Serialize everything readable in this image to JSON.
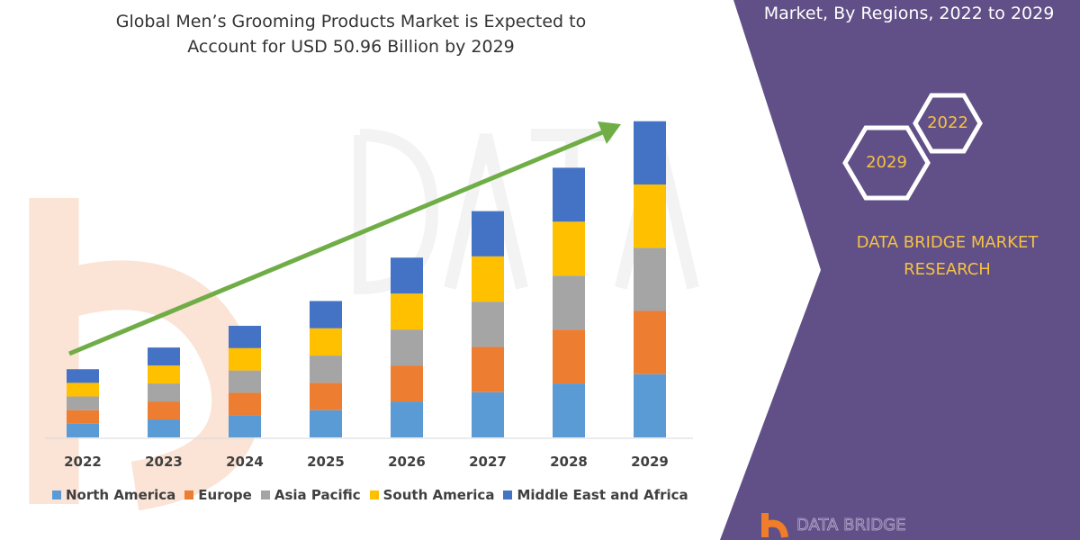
{
  "header": {
    "title_line1": "Global Men’s Grooming Products Market is Expected to",
    "title_line2": "Account for USD 50.96 Billion by 2029"
  },
  "panel": {
    "title": "Market, By Regions, 2022 to 2029",
    "hex_years": [
      "2022",
      "2029"
    ],
    "brand_line1": "DATA BRIDGE MARKET",
    "brand_line2": "RESEARCH",
    "logo_text": "DATA BRIDGE",
    "colors": {
      "panel": "#614f87",
      "accent": "#f5c242"
    }
  },
  "watermark": "DATA BRIDGE",
  "chart_data": {
    "type": "bar",
    "stacked": true,
    "title": "Global Men’s Grooming Products Market is Expected to Account for USD 50.96 Billion by 2029",
    "categories": [
      "2022",
      "2023",
      "2024",
      "2025",
      "2026",
      "2027",
      "2028",
      "2029"
    ],
    "series": [
      {
        "name": "North America",
        "color": "#5b9bd5",
        "values": [
          2.2,
          2.9,
          3.6,
          4.4,
          5.8,
          7.3,
          8.7,
          10.2
        ]
      },
      {
        "name": "Europe",
        "color": "#ed7d31",
        "values": [
          2.2,
          2.9,
          3.6,
          4.4,
          5.8,
          7.3,
          8.7,
          10.2
        ]
      },
      {
        "name": "Asia Pacific",
        "color": "#a5a5a5",
        "values": [
          2.2,
          2.9,
          3.6,
          4.4,
          5.8,
          7.3,
          8.7,
          10.2
        ]
      },
      {
        "name": "South America",
        "color": "#ffc000",
        "values": [
          2.2,
          2.9,
          3.6,
          4.4,
          5.8,
          7.3,
          8.7,
          10.2
        ]
      },
      {
        "name": "Middle East and Africa",
        "color": "#4472c4",
        "values": [
          2.2,
          2.9,
          3.6,
          4.4,
          5.8,
          7.3,
          8.7,
          10.2
        ]
      }
    ],
    "ylim": [
      0,
      50.96
    ],
    "grid": false,
    "legend": "bottom",
    "trend_arrow_color": "#70ad47"
  }
}
